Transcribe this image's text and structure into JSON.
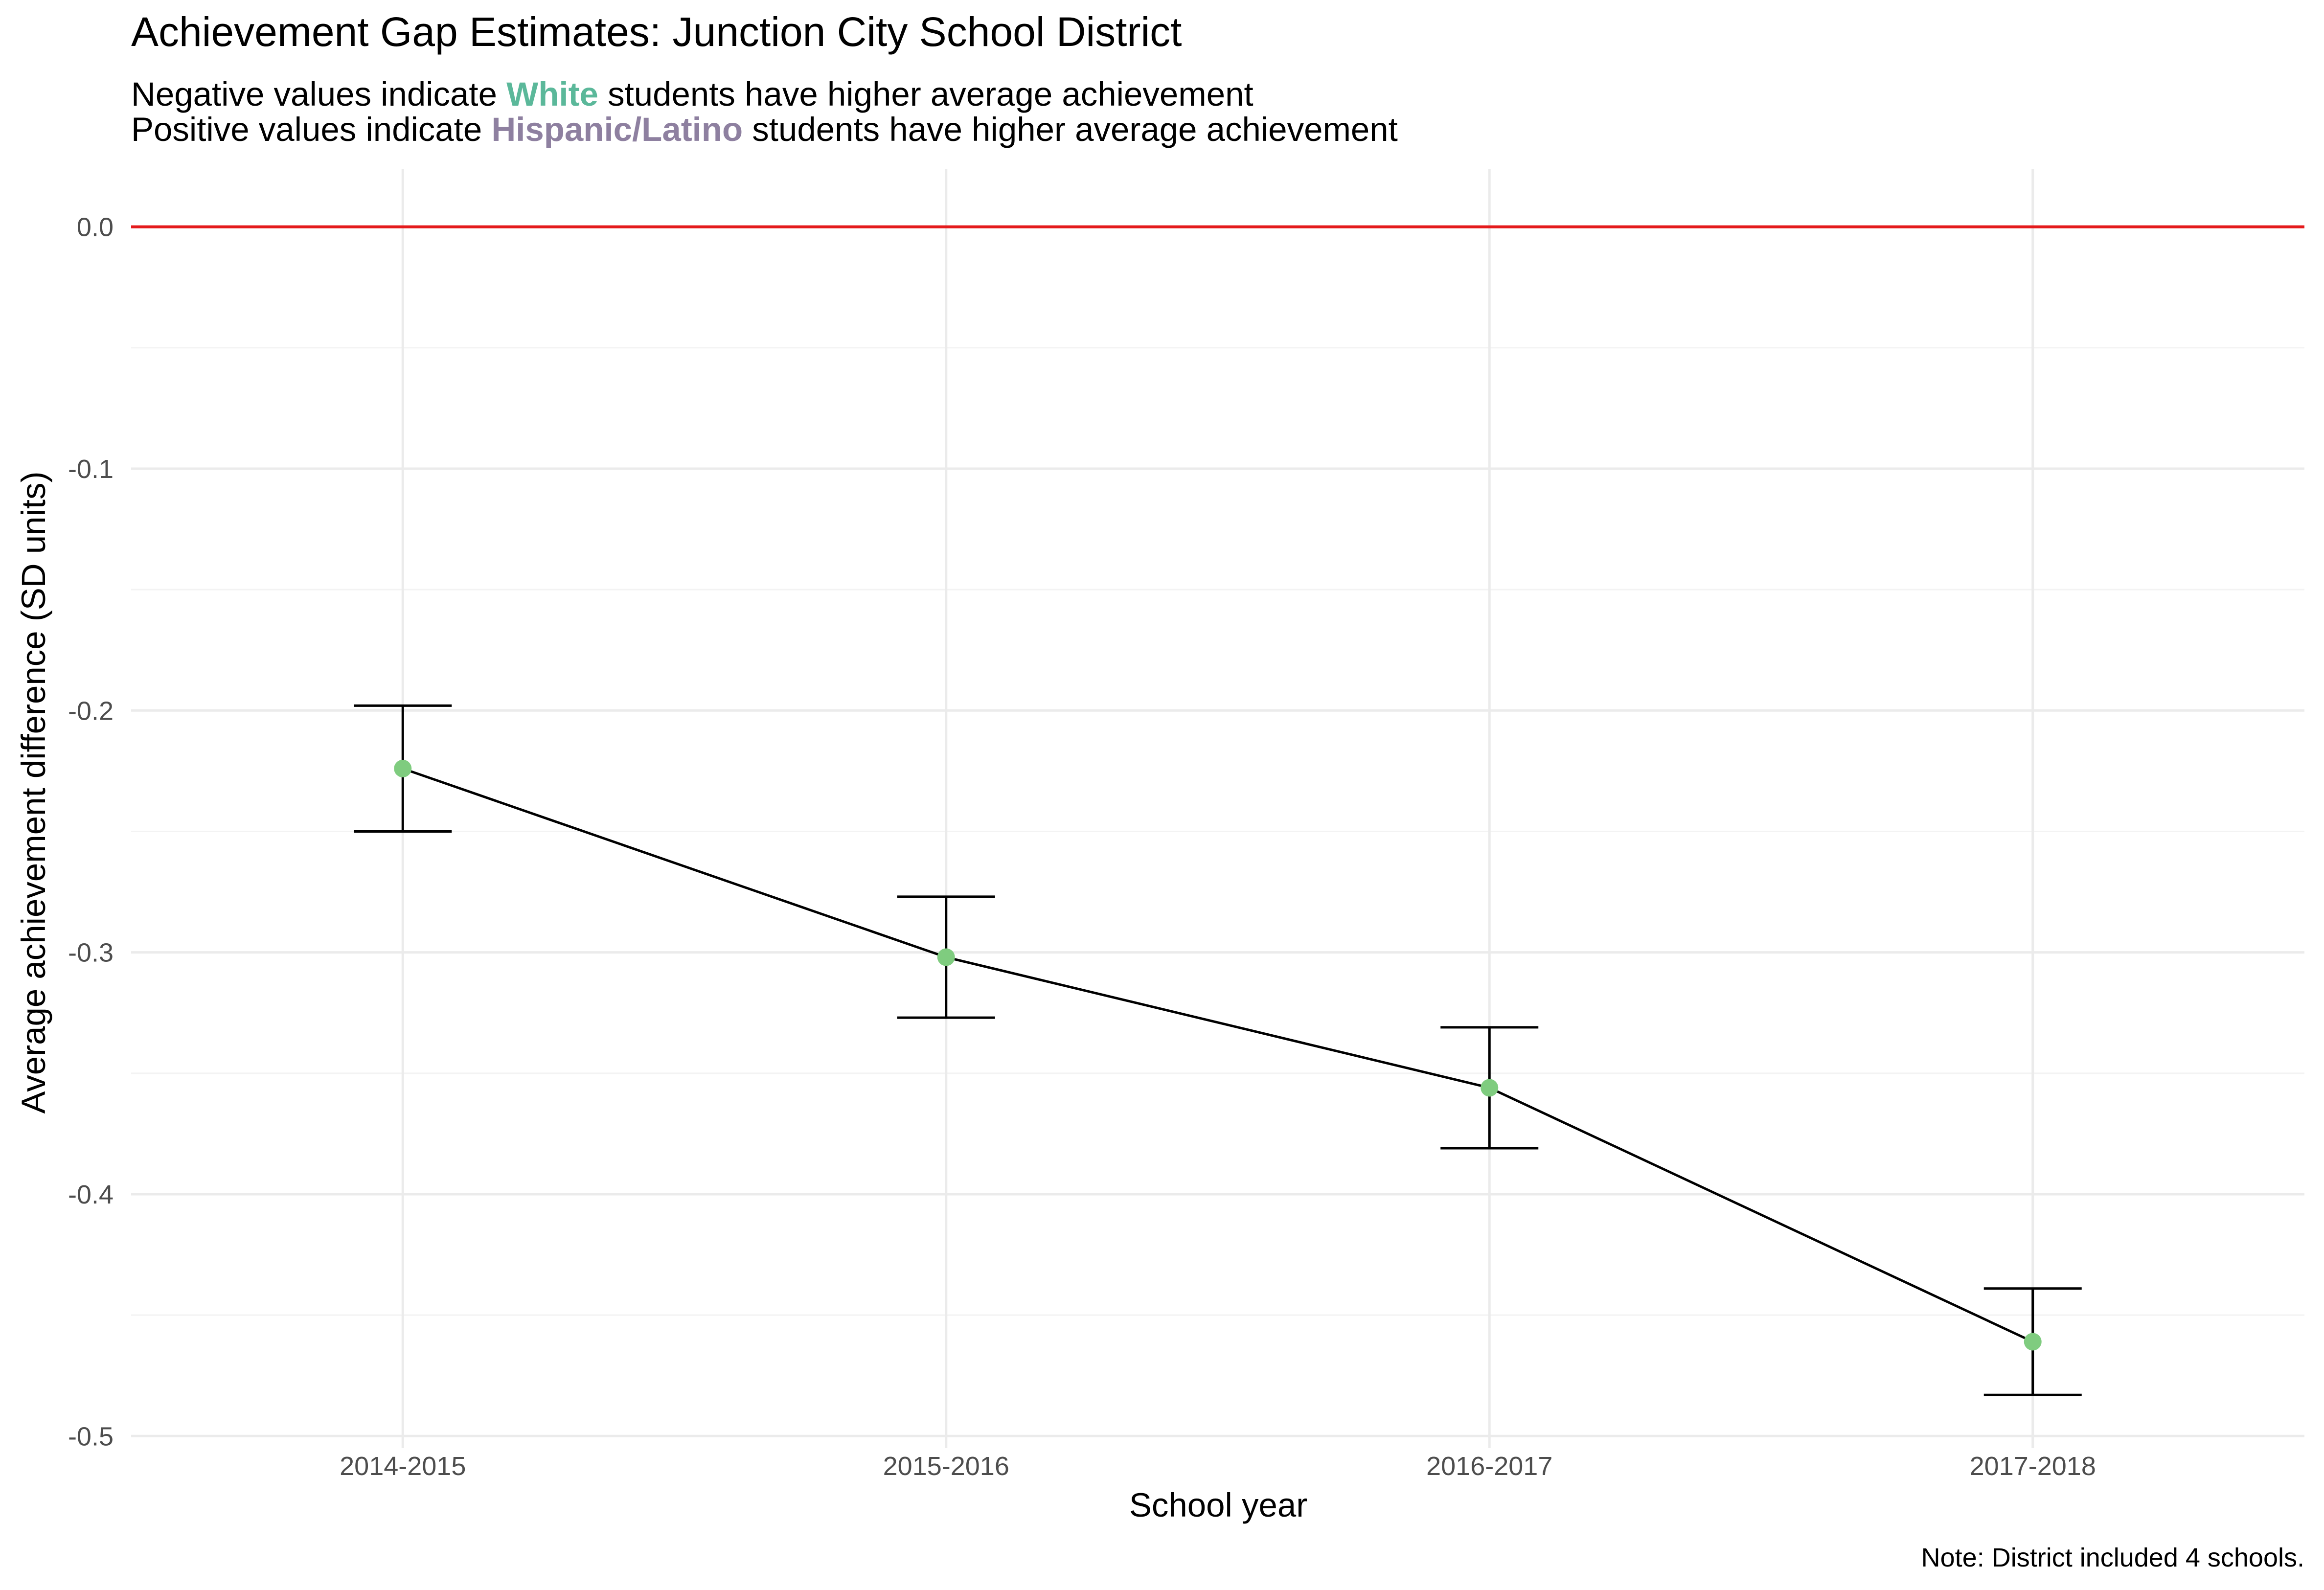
{
  "chart_data": {
    "type": "line",
    "title": "Achievement Gap Estimates: Junction City School District",
    "subtitle": [
      {
        "prefix": "Negative values indicate ",
        "highlight": "White",
        "highlight_color": "#5BB89A",
        "suffix": " students have higher average achievement"
      },
      {
        "prefix": "Positive values indicate ",
        "highlight": "Hispanic/Latino",
        "highlight_color": "#8E80A0",
        "suffix": " students have higher average achievement"
      }
    ],
    "xlabel": "School year",
    "ylabel": "Average achievement difference (SD units)",
    "caption": "Note: District included 4 schools.",
    "categories": [
      "2014-2015",
      "2015-2016",
      "2016-2017",
      "2017-2018"
    ],
    "values": [
      -0.224,
      -0.302,
      -0.356,
      -0.461
    ],
    "error_low": [
      -0.25,
      -0.327,
      -0.381,
      -0.483
    ],
    "error_high": [
      -0.198,
      -0.277,
      -0.331,
      -0.439
    ],
    "ylim": [
      -0.505,
      0.024
    ],
    "yticks": [
      0.0,
      -0.1,
      -0.2,
      -0.3,
      -0.4,
      -0.5
    ],
    "ytick_labels": [
      "0.0",
      "-0.1",
      "-0.2",
      "-0.3",
      "-0.4",
      "-0.5"
    ],
    "reference_line": 0,
    "colors": {
      "point": "#7FCC7F",
      "line": "#000000",
      "errorbar": "#000000",
      "reference_line": "#E41A1C",
      "grid_major": "#EBEBEB",
      "grid_minor": "#F3F3F3"
    },
    "grid": true
  }
}
